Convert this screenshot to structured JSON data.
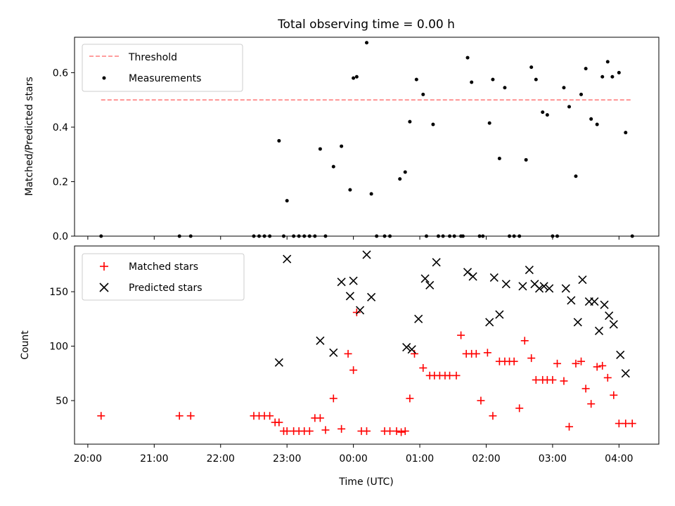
{
  "chart_data": [
    {
      "type": "scatter",
      "title": "Total observing time = 0.00 h",
      "xlabel": "",
      "ylabel": "Matched/Predicted stars",
      "xlim": [
        -0.2,
        8.6
      ],
      "ylim": [
        0,
        0.73
      ],
      "yticks": [
        "0.0",
        "0.2",
        "0.4",
        "0.6"
      ],
      "grid": false,
      "legend_position": "top-left",
      "threshold": {
        "name": "Threshold",
        "y": 0.5,
        "x": [
          0.2,
          8.2
        ],
        "color": "#ff7f7f"
      },
      "series": [
        {
          "name": "Measurements",
          "marker": "dot",
          "color": "#000000",
          "x": [
            0.2,
            1.38,
            1.55,
            2.5,
            2.58,
            2.66,
            2.74,
            2.88,
            2.95,
            3.0,
            3.1,
            3.18,
            3.26,
            3.34,
            3.42,
            3.5,
            3.58,
            3.7,
            3.82,
            3.95,
            4.0,
            4.05,
            4.2,
            4.27,
            4.35,
            4.47,
            4.55,
            4.7,
            4.78,
            4.85,
            4.95,
            5.05,
            5.1,
            5.2,
            5.28,
            5.35,
            5.45,
            5.52,
            5.62,
            5.65,
            5.72,
            5.78,
            5.9,
            5.95,
            6.05,
            6.1,
            6.2,
            6.28,
            6.35,
            6.42,
            6.5,
            6.6,
            6.68,
            6.75,
            6.85,
            6.92,
            7.0,
            7.07,
            7.17,
            7.25,
            7.35,
            7.43,
            7.5,
            7.58,
            7.67,
            7.75,
            7.83,
            7.9,
            8.0,
            8.1,
            8.2
          ],
          "y": [
            0.0,
            0.0,
            0.0,
            0.0,
            0.0,
            0.0,
            0.0,
            0.35,
            0.0,
            0.13,
            0.0,
            0.0,
            0.0,
            0.0,
            0.0,
            0.32,
            0.0,
            0.255,
            0.33,
            0.17,
            0.58,
            0.585,
            0.71,
            0.155,
            0.0,
            0.0,
            0.0,
            0.21,
            0.235,
            0.42,
            0.575,
            0.52,
            0.0,
            0.41,
            0.0,
            0.0,
            0.0,
            0.0,
            0.0,
            0.0,
            0.655,
            0.565,
            0.0,
            0.0,
            0.415,
            0.575,
            0.285,
            0.545,
            0.0,
            0.0,
            0.0,
            0.28,
            0.62,
            0.575,
            0.455,
            0.445,
            0.0,
            0.0,
            0.545,
            0.475,
            0.22,
            0.52,
            0.615,
            0.43,
            0.41,
            0.585,
            0.64,
            0.585,
            0.6,
            0.38,
            0.0
          ]
        }
      ]
    },
    {
      "type": "scatter",
      "title": "",
      "xlabel": "Time (UTC)",
      "ylabel": "Count",
      "xlim": [
        -0.2,
        8.6
      ],
      "ylim": [
        10,
        192
      ],
      "xticks": [
        "20:00",
        "21:00",
        "22:00",
        "23:00",
        "00:00",
        "01:00",
        "02:00",
        "03:00",
        "04:00"
      ],
      "yticks": [
        "50",
        "100",
        "150"
      ],
      "grid": false,
      "legend_position": "top-left",
      "series": [
        {
          "name": "Matched stars",
          "marker": "plus",
          "color": "#ff0000",
          "x": [
            0.2,
            1.38,
            1.55,
            2.5,
            2.58,
            2.66,
            2.74,
            2.82,
            2.88,
            2.95,
            3.0,
            3.1,
            3.18,
            3.26,
            3.34,
            3.42,
            3.5,
            3.58,
            3.7,
            3.82,
            3.92,
            4.0,
            4.05,
            4.12,
            4.2,
            4.47,
            4.55,
            4.65,
            4.72,
            4.78,
            4.85,
            4.92,
            5.05,
            5.15,
            5.22,
            5.3,
            5.38,
            5.45,
            5.55,
            5.62,
            5.7,
            5.78,
            5.85,
            5.92,
            6.02,
            6.1,
            6.2,
            6.28,
            6.35,
            6.42,
            6.5,
            6.58,
            6.68,
            6.75,
            6.85,
            6.92,
            7.0,
            7.07,
            7.17,
            7.25,
            7.35,
            7.43,
            7.5,
            7.58,
            7.67,
            7.75,
            7.83,
            7.92,
            8.0,
            8.1,
            8.2
          ],
          "y": [
            36,
            36,
            36,
            36,
            36,
            36,
            36,
            30,
            30,
            22,
            22,
            22,
            22,
            22,
            22,
            34,
            34,
            23,
            52,
            24,
            93,
            78,
            131,
            22,
            22,
            22,
            22,
            22,
            21,
            22,
            52,
            93,
            80,
            73,
            73,
            73,
            73,
            73,
            73,
            110,
            93,
            93,
            93,
            50,
            94,
            36,
            86,
            86,
            86,
            86,
            43,
            105,
            89,
            69,
            69,
            69,
            69,
            84,
            68,
            26,
            84,
            86,
            61,
            47,
            81,
            82,
            71,
            55,
            29,
            29,
            29
          ]
        },
        {
          "name": "Predicted stars",
          "marker": "cross",
          "color": "#000000",
          "x": [
            2.88,
            3.0,
            3.5,
            3.7,
            3.82,
            3.95,
            4.0,
            4.1,
            4.2,
            4.27,
            4.8,
            4.88,
            4.98,
            5.08,
            5.15,
            5.25,
            5.72,
            5.8,
            6.05,
            6.12,
            6.2,
            6.3,
            6.55,
            6.65,
            6.73,
            6.8,
            6.87,
            6.95,
            7.2,
            7.28,
            7.38,
            7.45,
            7.55,
            7.63,
            7.7,
            7.78,
            7.85,
            7.92,
            8.02,
            8.1
          ],
          "y": [
            85,
            180,
            105,
            94,
            159,
            146,
            160,
            133,
            184,
            145,
            99,
            97,
            125,
            162,
            156,
            177,
            168,
            164,
            122,
            163,
            129,
            157,
            155,
            170,
            157,
            153,
            155,
            153,
            153,
            142,
            122,
            161,
            141,
            141,
            114,
            138,
            128,
            120,
            92,
            75
          ]
        }
      ]
    }
  ]
}
